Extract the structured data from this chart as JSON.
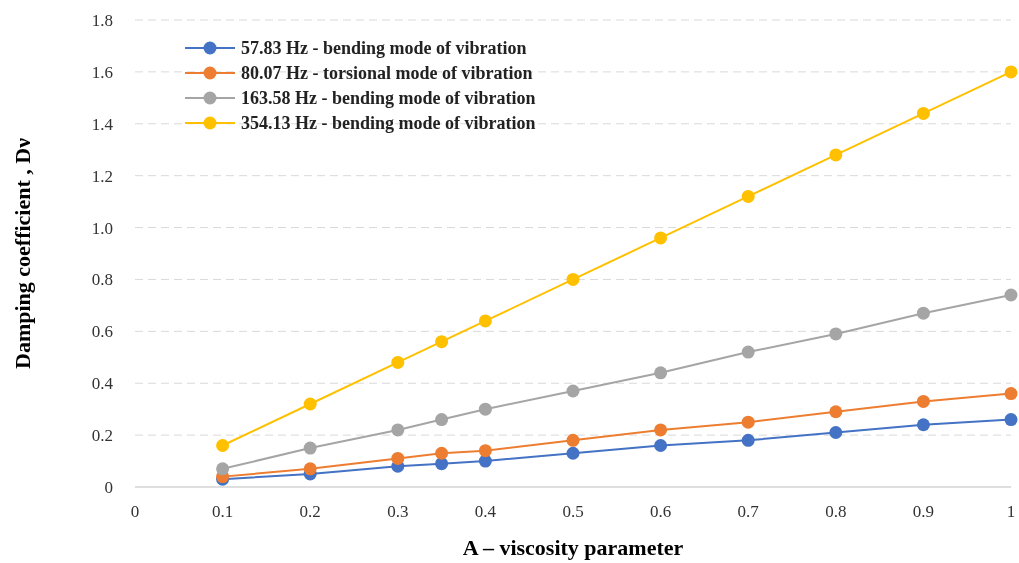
{
  "chart_data": {
    "type": "line",
    "xlabel": "A – viscosity parameter",
    "ylabel": "Damping coefficient , Dν",
    "x": [
      0.1,
      0.2,
      0.3,
      0.35,
      0.4,
      0.5,
      0.6,
      0.7,
      0.8,
      0.9,
      1
    ],
    "xlim": [
      0,
      1
    ],
    "xticks": [
      0,
      0.1,
      0.2,
      0.3,
      0.4,
      0.5,
      0.6,
      0.7,
      0.8,
      0.9,
      1
    ],
    "ylim": [
      0,
      1.8
    ],
    "yticks": [
      0,
      0.2,
      0.4,
      0.6,
      0.8,
      {
        "value": 1,
        "label": "1.0"
      },
      1.2,
      1.4,
      1.6,
      1.8
    ],
    "grid": "y",
    "legend": "top left",
    "marker": "circle",
    "line_style": "solid",
    "series": [
      {
        "name": "57.83 Hz - bending mode of vibration",
        "color": "#4472c4",
        "values": [
          0.03,
          0.05,
          0.08,
          0.09,
          0.1,
          0.13,
          0.16,
          0.18,
          0.21,
          0.24,
          0.26
        ]
      },
      {
        "name": "80.07 Hz - torsional mode of vibration",
        "color": "#ed7d31",
        "values": [
          0.04,
          0.07,
          0.11,
          0.13,
          0.14,
          0.18,
          0.22,
          0.25,
          0.29,
          0.33,
          0.36
        ]
      },
      {
        "name": "163.58 Hz - bending mode of vibration",
        "color": "#a5a5a5",
        "values": [
          0.07,
          0.15,
          0.22,
          0.26,
          0.3,
          0.37,
          0.44,
          0.52,
          0.59,
          0.67,
          0.74
        ]
      },
      {
        "name": "354.13 Hz - bending mode of vibration",
        "color": "#ffc000",
        "values": [
          0.16,
          0.32,
          0.48,
          0.56,
          0.64,
          0.8,
          0.96,
          1.12,
          1.28,
          1.44,
          1.6
        ]
      }
    ]
  }
}
